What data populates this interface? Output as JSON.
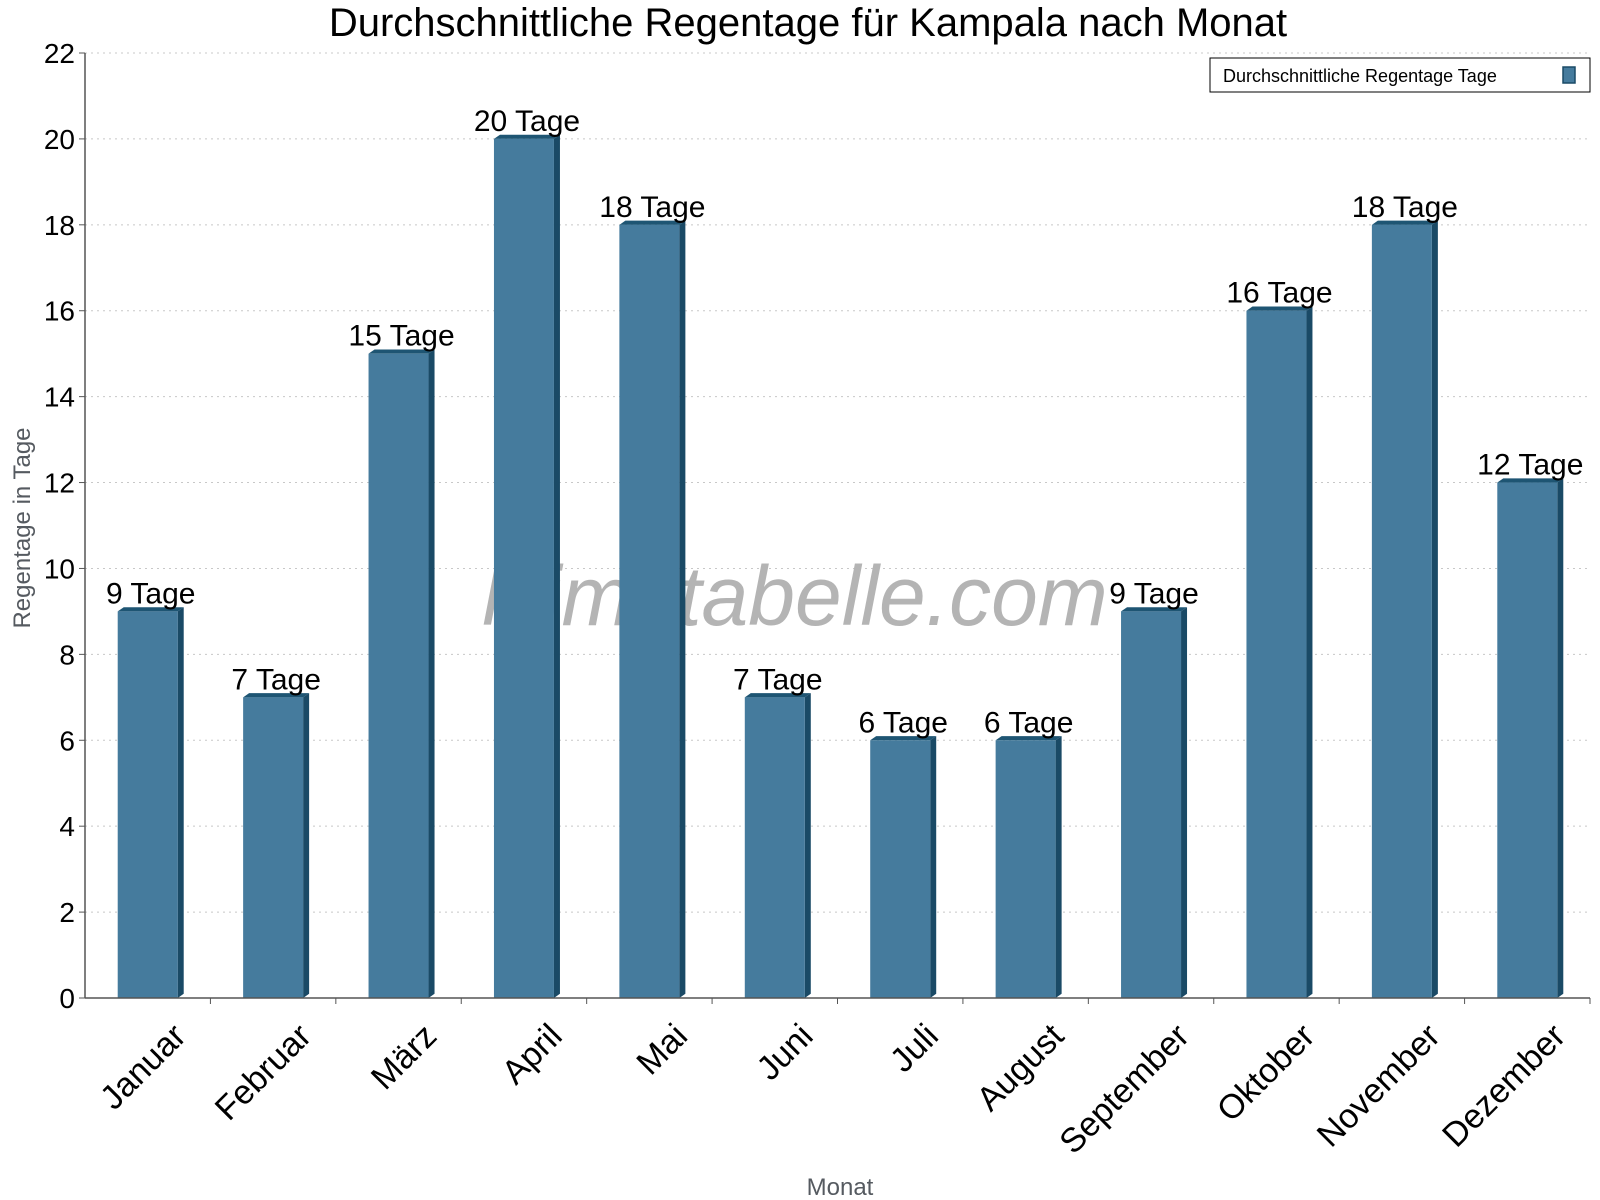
{
  "chart_data": {
    "type": "bar",
    "title": "Durchschnittliche Regentage für Kampala nach Monat",
    "xlabel": "Monat",
    "ylabel": "Regentage in Tage",
    "ylim": [
      0,
      22
    ],
    "ytick_step": 2,
    "grid": true,
    "legend_position": "top-right",
    "categories": [
      "Januar",
      "Februar",
      "März",
      "April",
      "Mai",
      "Juni",
      "Juli",
      "August",
      "September",
      "Oktober",
      "November",
      "Dezember"
    ],
    "series": [
      {
        "name": "Durchschnittliche Regentage Tage",
        "color": "#457b9d",
        "values": [
          9,
          7,
          15,
          20,
          18,
          7,
          6,
          6,
          9,
          16,
          18,
          12
        ],
        "labels": [
          "9 Tage",
          "7 Tage",
          "15 Tage",
          "20 Tage",
          "18 Tage",
          "7 Tage",
          "6 Tage",
          "6 Tage",
          "9 Tage",
          "16 Tage",
          "18 Tage",
          "12 Tage"
        ]
      }
    ]
  },
  "watermark": "klimatabelle.com"
}
